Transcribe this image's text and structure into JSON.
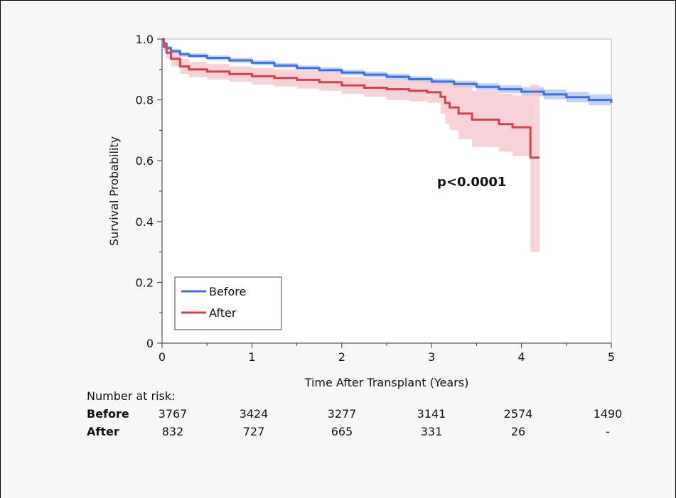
{
  "chart_data": {
    "type": "line",
    "title": "",
    "xlabel": "Time After Transplant (Years)",
    "ylabel": "Survival Probability",
    "xlim": [
      0,
      5
    ],
    "ylim": [
      0,
      1.0
    ],
    "x_ticks": [
      "0",
      "1",
      "2",
      "3",
      "4",
      "5"
    ],
    "y_ticks": [
      "0",
      "0.2",
      "0.4",
      "0.6",
      "0.8",
      "1.0"
    ],
    "annotation": "p<0.0001",
    "legend_position": "bottom-left",
    "series": [
      {
        "name": "Before",
        "color": "#3f6fe0",
        "band_color": "#aec4f3",
        "x": [
          0,
          0.02,
          0.05,
          0.1,
          0.2,
          0.3,
          0.5,
          0.75,
          1.0,
          1.25,
          1.5,
          1.75,
          2.0,
          2.25,
          2.5,
          2.75,
          3.0,
          3.25,
          3.5,
          3.75,
          4.0,
          4.25,
          4.5,
          4.75,
          5.0
        ],
        "y": [
          1.0,
          0.985,
          0.97,
          0.96,
          0.95,
          0.945,
          0.938,
          0.93,
          0.922,
          0.913,
          0.905,
          0.898,
          0.89,
          0.883,
          0.876,
          0.868,
          0.86,
          0.852,
          0.843,
          0.835,
          0.827,
          0.818,
          0.809,
          0.8,
          0.79
        ],
        "lower": [
          1.0,
          0.978,
          0.962,
          0.952,
          0.942,
          0.937,
          0.93,
          0.922,
          0.914,
          0.905,
          0.897,
          0.889,
          0.881,
          0.873,
          0.866,
          0.858,
          0.85,
          0.841,
          0.831,
          0.822,
          0.812,
          0.802,
          0.792,
          0.782,
          0.771
        ],
        "upper": [
          1.0,
          0.992,
          0.978,
          0.968,
          0.958,
          0.953,
          0.946,
          0.938,
          0.93,
          0.921,
          0.913,
          0.907,
          0.899,
          0.893,
          0.886,
          0.878,
          0.87,
          0.863,
          0.855,
          0.848,
          0.842,
          0.834,
          0.826,
          0.818,
          0.809
        ]
      },
      {
        "name": "After",
        "color": "#d44050",
        "band_color": "#f4c3c8",
        "x": [
          0,
          0.02,
          0.05,
          0.1,
          0.2,
          0.3,
          0.5,
          0.75,
          1.0,
          1.25,
          1.5,
          1.75,
          2.0,
          2.25,
          2.5,
          2.75,
          2.95,
          3.1,
          3.15,
          3.2,
          3.3,
          3.45,
          3.75,
          3.9,
          4.1,
          4.2
        ],
        "y": [
          1.0,
          0.975,
          0.955,
          0.935,
          0.91,
          0.9,
          0.893,
          0.885,
          0.878,
          0.872,
          0.866,
          0.858,
          0.848,
          0.84,
          0.835,
          0.83,
          0.825,
          0.81,
          0.79,
          0.775,
          0.755,
          0.735,
          0.72,
          0.71,
          0.61,
          0.61
        ],
        "lower": [
          1.0,
          0.96,
          0.935,
          0.91,
          0.885,
          0.875,
          0.867,
          0.859,
          0.85,
          0.844,
          0.837,
          0.83,
          0.82,
          0.81,
          0.8,
          0.795,
          0.79,
          0.755,
          0.72,
          0.7,
          0.67,
          0.645,
          0.63,
          0.615,
          0.3,
          0.3
        ],
        "upper": [
          1.0,
          0.99,
          0.975,
          0.96,
          0.935,
          0.925,
          0.918,
          0.91,
          0.905,
          0.9,
          0.895,
          0.888,
          0.876,
          0.87,
          0.866,
          0.862,
          0.858,
          0.855,
          0.852,
          0.85,
          0.845,
          0.83,
          0.82,
          0.815,
          0.85,
          0.85
        ]
      }
    ],
    "risk_table": {
      "header": "Number at risk:",
      "rows": [
        {
          "label": "Before",
          "values": [
            "3767",
            "3424",
            "3277",
            "3141",
            "2574",
            "1490"
          ]
        },
        {
          "label": "After",
          "values": [
            "832",
            "727",
            "665",
            "331",
            "26",
            "-"
          ]
        }
      ]
    }
  }
}
